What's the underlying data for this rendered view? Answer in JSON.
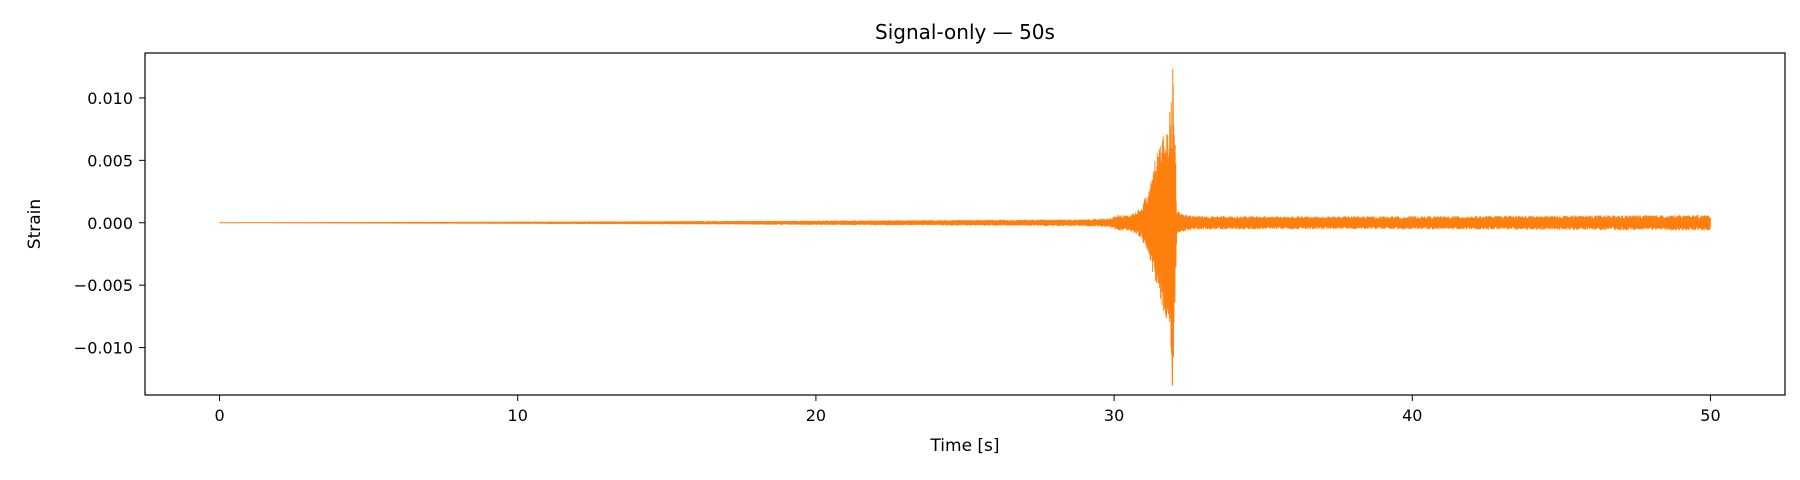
{
  "chart_data": {
    "type": "line",
    "title": "Signal-only — 50s",
    "xlabel": "Time [s]",
    "ylabel": "Strain",
    "xlim": [
      -2.5,
      52.5
    ],
    "ylim": [
      -0.0138,
      0.0136
    ],
    "x_ticks": [
      0,
      10,
      20,
      30,
      40,
      50
    ],
    "x_tick_labels": [
      "0",
      "10",
      "20",
      "30",
      "40",
      "50"
    ],
    "y_ticks": [
      0.01,
      0.005,
      0.0,
      -0.005,
      -0.01
    ],
    "y_tick_labels": [
      "0.010",
      "0.005",
      "0.000",
      "−0.005",
      "−0.010"
    ],
    "grid": false,
    "legend": "none",
    "series": [
      {
        "color": "#ff7f0e",
        "envelope": {
          "t": [
            0,
            5,
            10,
            15,
            20,
            25,
            29,
            29.9,
            30.1,
            30.5,
            30.9,
            31.2,
            31.5,
            31.8,
            31.95,
            32.0,
            32.1,
            32.5,
            35,
            40,
            45,
            50
          ],
          "amp": [
            0.0,
            3e-05,
            6e-05,
            0.0001,
            0.00015,
            0.0002,
            0.00025,
            0.00035,
            0.0006,
            0.0006,
            0.0012,
            0.003,
            0.0065,
            0.008,
            0.011,
            0.0125,
            0.001,
            0.00055,
            0.0005,
            0.0005,
            0.00055,
            0.0006
          ]
        },
        "peak_max": {
          "t": 31.97,
          "value": 0.0123
        },
        "peak_min": {
          "t": 31.95,
          "value": -0.013
        }
      }
    ]
  }
}
